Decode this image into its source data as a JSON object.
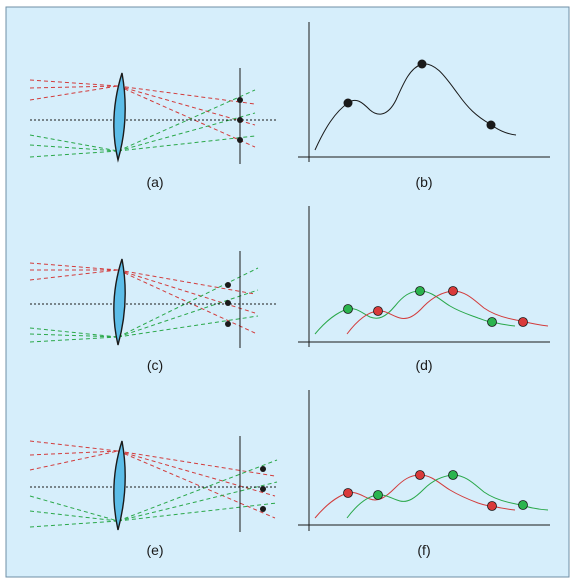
{
  "colors": {
    "background": "#d6eefb",
    "frame": "#6f8fa6",
    "lens_fill": "#5cbde8",
    "lens_stroke": "#1a1a1a",
    "red_ray": "#d23c3c",
    "green_ray": "#2aa84a",
    "axis_line": "#1a1a1a",
    "curve": "#1a1a1a",
    "dot_black": "#1a1a1a",
    "dot_red": "#d93a3a",
    "dot_green": "#2bb44e"
  },
  "panels": [
    {
      "id": "a",
      "label": "(a)"
    },
    {
      "id": "b",
      "label": "(b)"
    },
    {
      "id": "c",
      "label": "(c)"
    },
    {
      "id": "d",
      "label": "(d)"
    },
    {
      "id": "e",
      "label": "(e)"
    },
    {
      "id": "f",
      "label": "(f)"
    }
  ]
}
